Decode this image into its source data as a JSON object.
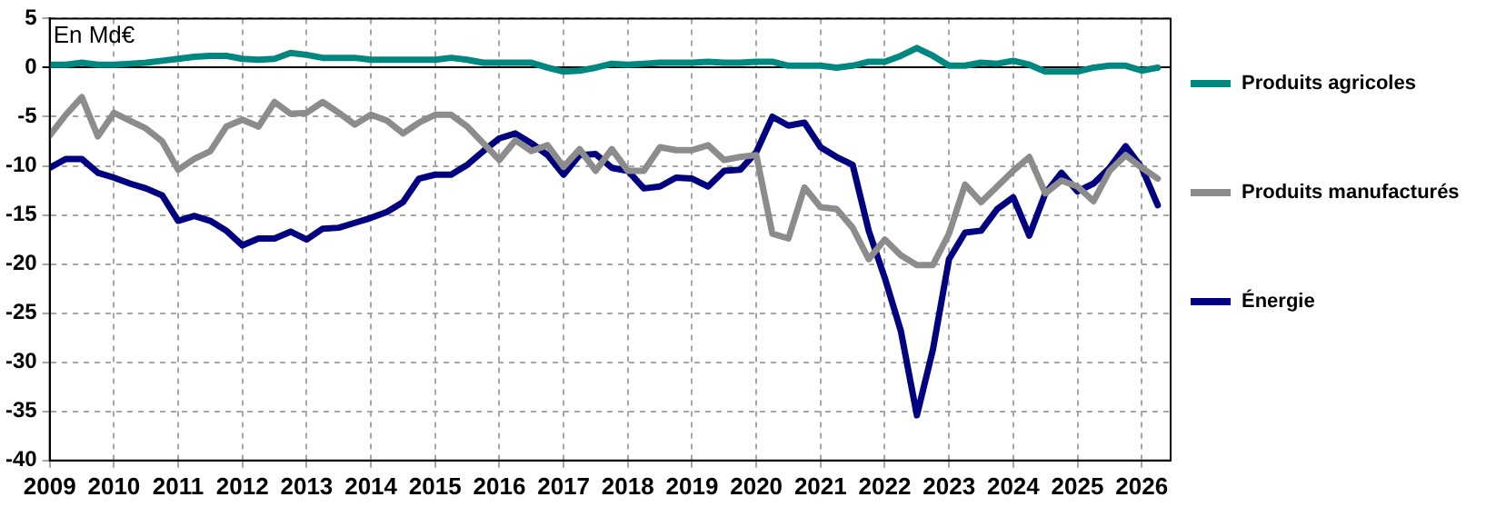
{
  "chart_data": {
    "type": "line",
    "annotations": [
      "En Md€"
    ],
    "x": [
      2009,
      2009.25,
      2009.5,
      2009.75,
      2010,
      2010.25,
      2010.5,
      2010.75,
      2011,
      2011.25,
      2011.5,
      2011.75,
      2012,
      2012.25,
      2012.5,
      2012.75,
      2013,
      2013.25,
      2013.5,
      2013.75,
      2014,
      2014.25,
      2014.5,
      2014.75,
      2015,
      2015.25,
      2015.5,
      2015.75,
      2016,
      2016.25,
      2016.5,
      2016.75,
      2017,
      2017.25,
      2017.5,
      2017.75,
      2018,
      2018.25,
      2018.5,
      2018.75,
      2019,
      2019.25,
      2019.5,
      2019.75,
      2020,
      2020.25,
      2020.5,
      2020.75,
      2021,
      2021.25,
      2021.5,
      2021.75,
      2022,
      2022.25,
      2022.5,
      2022.75,
      2023,
      2023.25,
      2023.5,
      2023.75,
      2024,
      2024.25,
      2024.5,
      2024.75,
      2025,
      2025.25,
      2025.5,
      2025.75,
      2026,
      2026.25
    ],
    "series": [
      {
        "name": "Produits agricoles",
        "color": "#00877f",
        "values": [
          0.3,
          0.3,
          0.5,
          0.3,
          0.3,
          0.4,
          0.5,
          0.7,
          0.9,
          1.1,
          1.2,
          1.2,
          0.9,
          0.8,
          0.9,
          1.5,
          1.3,
          1.0,
          1.0,
          1.0,
          0.8,
          0.8,
          0.8,
          0.8,
          0.8,
          1.0,
          0.8,
          0.5,
          0.5,
          0.5,
          0.5,
          0.0,
          -0.4,
          -0.3,
          0.0,
          0.4,
          0.3,
          0.4,
          0.5,
          0.5,
          0.5,
          0.6,
          0.5,
          0.5,
          0.6,
          0.6,
          0.2,
          0.2,
          0.2,
          0.0,
          0.2,
          0.6,
          0.6,
          1.2,
          2.0,
          1.2,
          0.2,
          0.2,
          0.5,
          0.4,
          0.7,
          0.3,
          -0.4,
          -0.4,
          -0.4,
          0.0,
          0.2,
          0.2,
          -0.3,
          0.0
        ]
      },
      {
        "name": "Produits manufacturés",
        "color": "#8c8c8c",
        "values": [
          -6.9,
          -4.8,
          -3.0,
          -7.0,
          -4.6,
          -5.4,
          -6.2,
          -7.5,
          -10.4,
          -9.3,
          -8.5,
          -6.0,
          -5.3,
          -6.0,
          -3.5,
          -4.7,
          -4.6,
          -3.5,
          -4.6,
          -5.8,
          -4.8,
          -5.4,
          -6.7,
          -5.6,
          -4.8,
          -4.8,
          -6.0,
          -7.7,
          -9.4,
          -7.4,
          -8.5,
          -7.9,
          -10.1,
          -8.3,
          -10.5,
          -8.3,
          -10.5,
          -10.5,
          -8.1,
          -8.4,
          -8.4,
          -7.9,
          -9.4,
          -9.1,
          -8.9,
          -16.9,
          -17.4,
          -12.2,
          -14.2,
          -14.4,
          -16.3,
          -19.5,
          -17.5,
          -19.1,
          -20.1,
          -20.1,
          -16.9,
          -11.9,
          -13.7,
          -12.1,
          -10.5,
          -9.1,
          -12.8,
          -11.5,
          -12.1,
          -13.6,
          -10.5,
          -8.9,
          -10.2,
          -11.3
        ]
      },
      {
        "name": "Énergie",
        "color": "#000080",
        "values": [
          -10.2,
          -9.3,
          -9.3,
          -10.7,
          -11.2,
          -11.8,
          -12.3,
          -13.0,
          -15.6,
          -15.1,
          -15.6,
          -16.6,
          -18.1,
          -17.4,
          -17.4,
          -16.7,
          -17.5,
          -16.4,
          -16.3,
          -15.8,
          -15.3,
          -14.7,
          -13.7,
          -11.3,
          -10.9,
          -10.9,
          -9.9,
          -8.5,
          -7.2,
          -6.7,
          -7.7,
          -8.9,
          -10.9,
          -8.9,
          -8.8,
          -10.2,
          -10.5,
          -12.3,
          -12.1,
          -11.2,
          -11.3,
          -12.1,
          -10.5,
          -10.4,
          -8.6,
          -5.0,
          -5.9,
          -5.6,
          -8.1,
          -9.1,
          -9.9,
          -16.6,
          -21.4,
          -26.8,
          -35.4,
          -28.7,
          -19.5,
          -16.8,
          -16.6,
          -14.4,
          -13.2,
          -17.1,
          -12.8,
          -10.7,
          -12.6,
          -11.8,
          -10.2,
          -8.0,
          -10.2,
          -14.0
        ]
      }
    ],
    "xlim": [
      2009,
      2026.45
    ],
    "xticks": [
      2009,
      2010,
      2011,
      2012,
      2013,
      2014,
      2015,
      2016,
      2017,
      2018,
      2019,
      2020,
      2021,
      2022,
      2023,
      2024,
      2025,
      2026
    ],
    "ylim": [
      -40,
      5
    ],
    "yticks": [
      -40,
      -35,
      -30,
      -25,
      -20,
      -15,
      -10,
      -5,
      0,
      5
    ],
    "grid": true,
    "legend": "right",
    "marker": "none",
    "line_style": "solid"
  }
}
